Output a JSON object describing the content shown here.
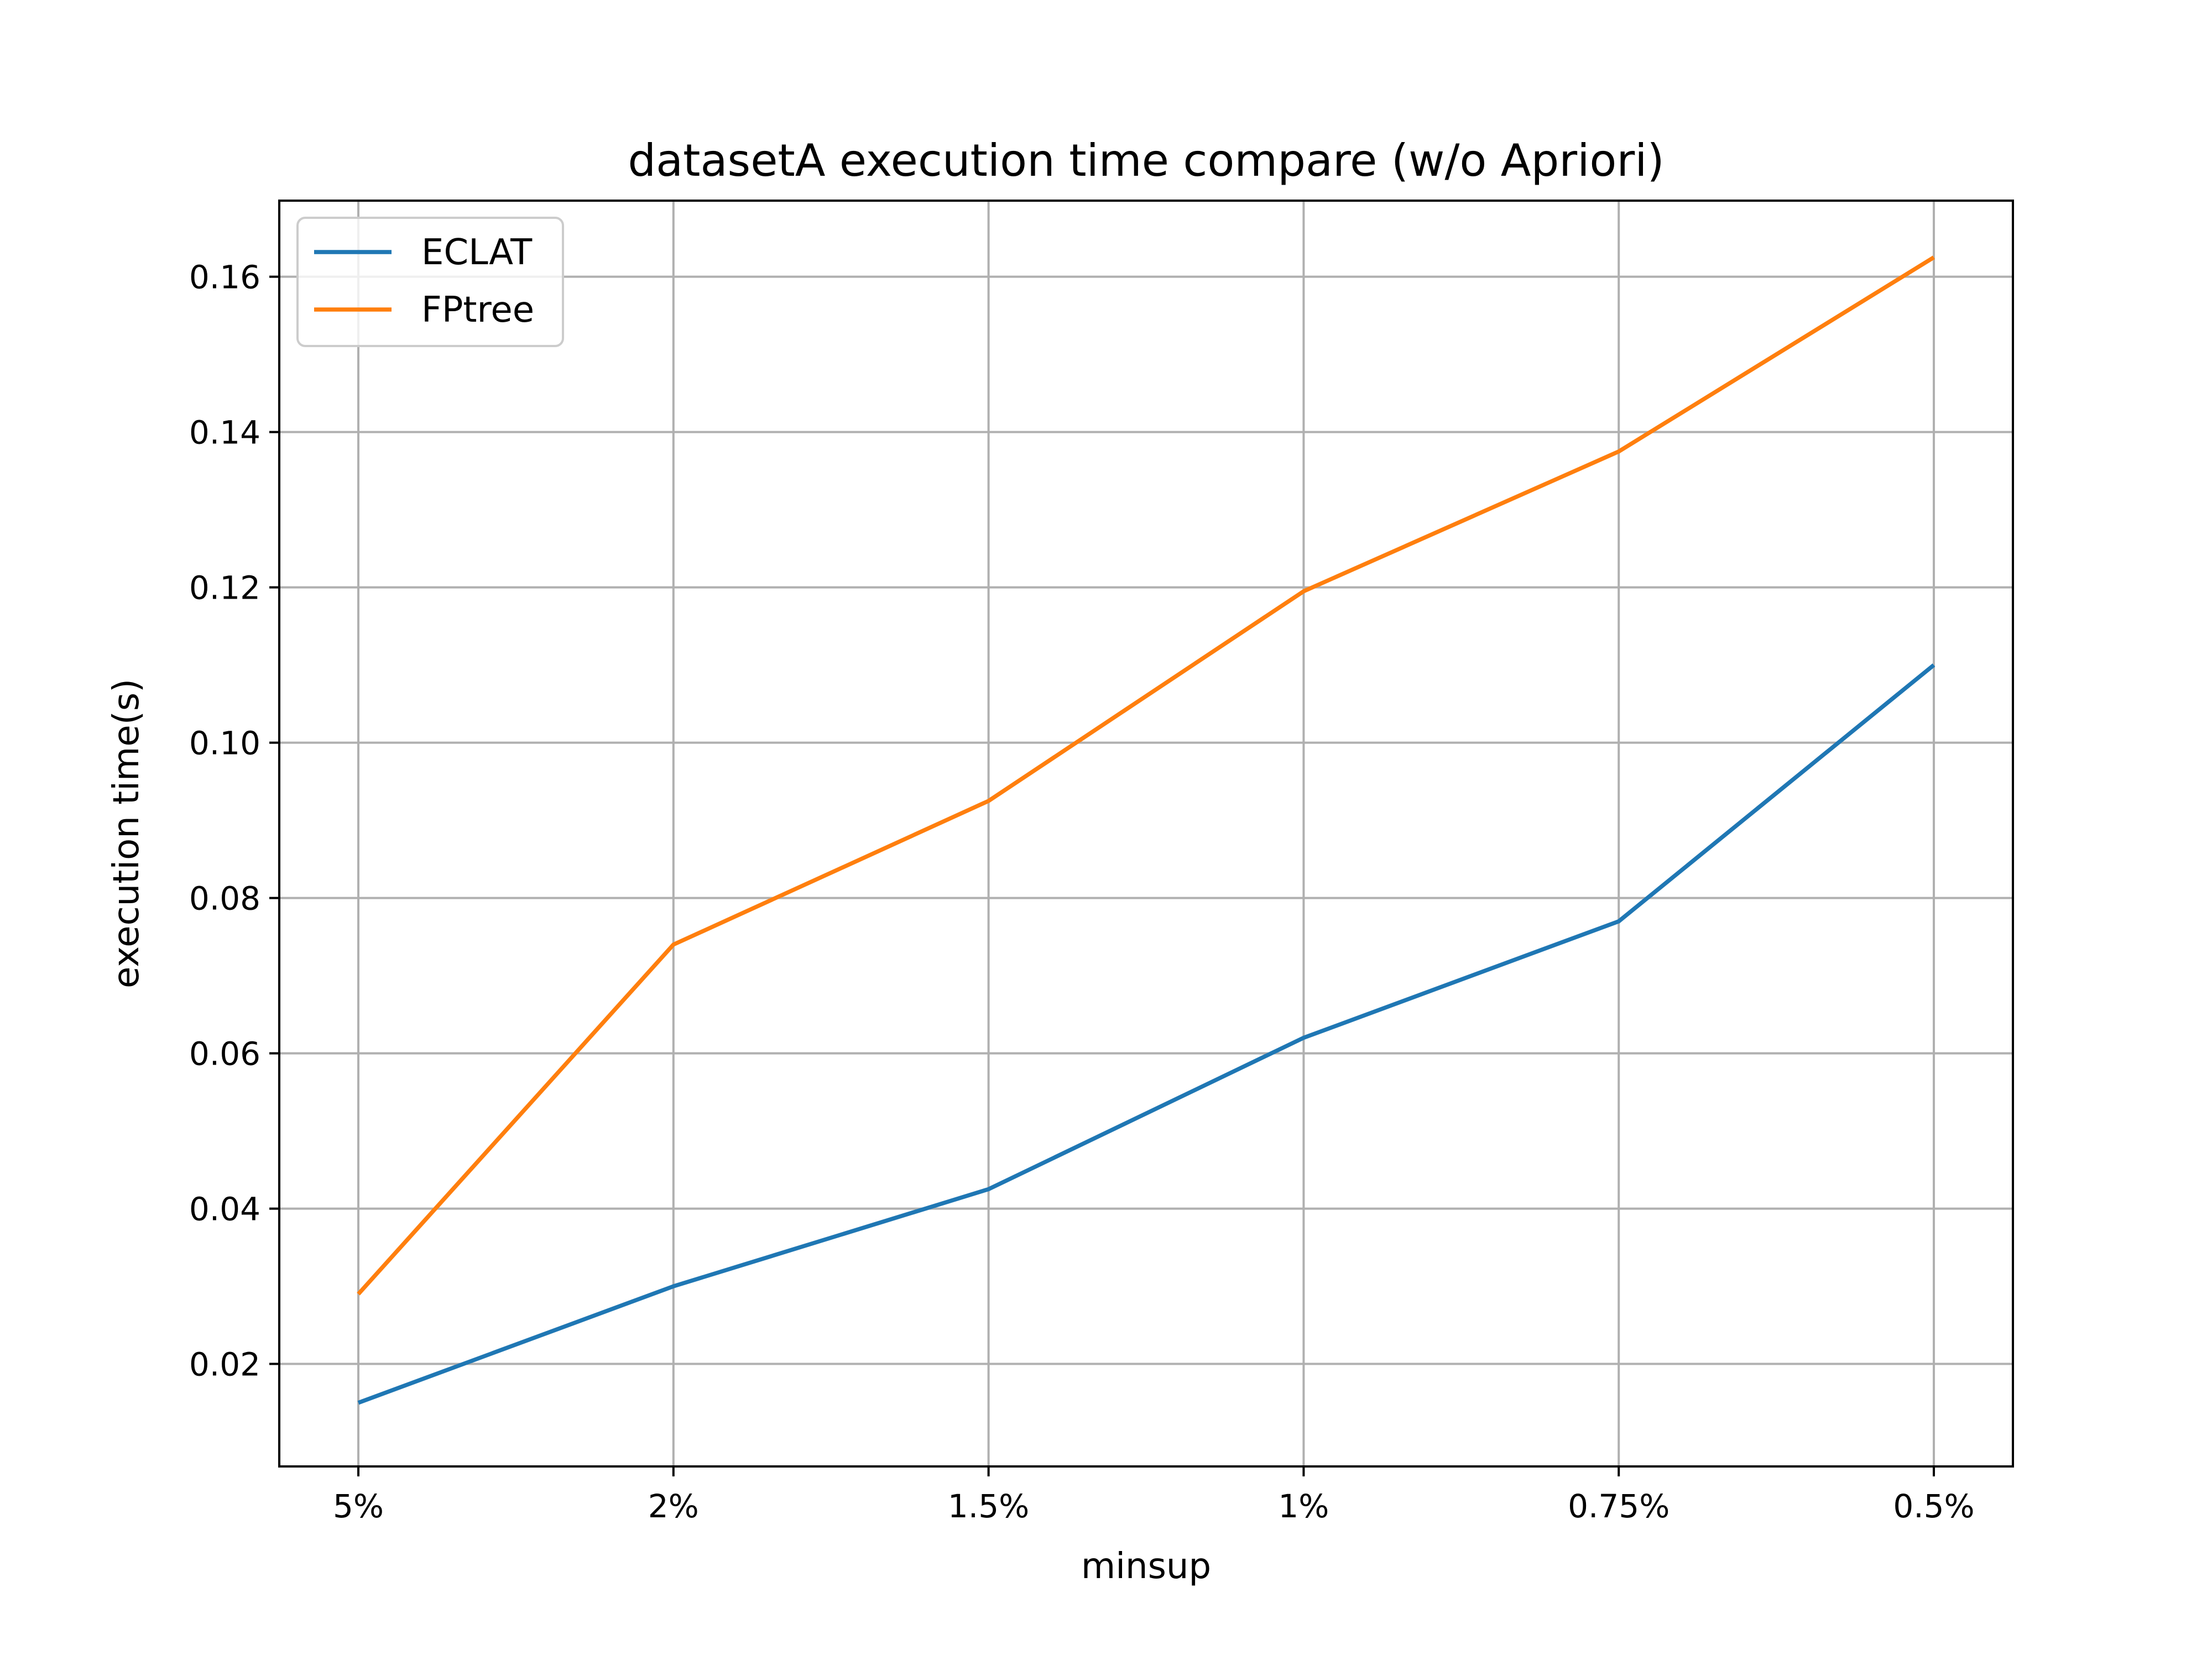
{
  "chart_data": {
    "type": "line",
    "title": "datasetA execution time compare (w/o Apriori)",
    "xlabel": "minsup",
    "ylabel": "execution time(s)",
    "categories": [
      "5%",
      "2%",
      "1.5%",
      "1%",
      "0.75%",
      "0.5%"
    ],
    "y_ticks": [
      "0.02",
      "0.04",
      "0.06",
      "0.08",
      "0.10",
      "0.12",
      "0.14",
      "0.16"
    ],
    "ylim": [
      0.0068,
      0.1698
    ],
    "grid": true,
    "legend_position": "upper-left",
    "series": [
      {
        "name": "ECLAT",
        "color": "#1f77b4",
        "values": [
          0.015,
          0.03,
          0.0425,
          0.062,
          0.077,
          0.11
        ]
      },
      {
        "name": "FPtree",
        "color": "#ff7f0e",
        "values": [
          0.029,
          0.074,
          0.0925,
          0.1195,
          0.1375,
          0.1625
        ]
      }
    ]
  }
}
